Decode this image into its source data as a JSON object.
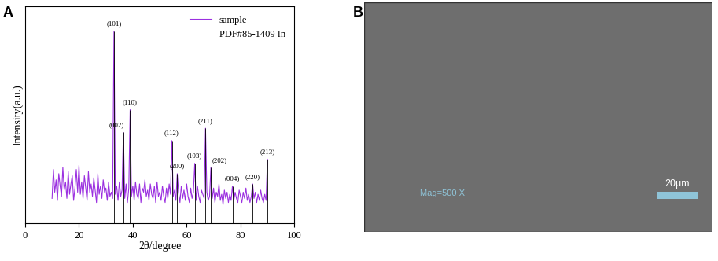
{
  "chart_data": {
    "type": "line",
    "panel_label": "A",
    "x_label": "2θ/degree",
    "y_label": "Intensity(a.u.)",
    "xlim": [
      0,
      100
    ],
    "xticks": [
      0,
      20,
      40,
      60,
      80,
      100
    ],
    "ylim": [
      0,
      1050
    ],
    "yticks": [],
    "tick_labels": "x",
    "grid": false,
    "legend": "upper right",
    "series": [
      {
        "name": "sample",
        "color": "#9b30e0",
        "x": [
          10.0,
          10.5,
          11.0,
          11.5,
          12.0,
          12.5,
          13.0,
          13.5,
          14.0,
          14.5,
          15.0,
          15.5,
          16.0,
          16.5,
          17.0,
          17.5,
          18.0,
          18.5,
          19.0,
          19.5,
          20.0,
          20.5,
          21.0,
          21.5,
          22.0,
          22.5,
          23.0,
          23.5,
          24.0,
          24.5,
          25.0,
          25.5,
          26.0,
          26.5,
          27.0,
          27.5,
          28.0,
          28.5,
          29.0,
          29.5,
          30.0,
          30.5,
          31.0,
          31.5,
          32.0,
          32.5,
          33.0,
          33.5,
          34.0,
          34.5,
          35.0,
          35.5,
          36.0,
          36.5,
          37.0,
          37.5,
          38.0,
          38.5,
          39.0,
          39.5,
          40.0,
          40.5,
          41.0,
          41.5,
          42.0,
          42.5,
          43.0,
          43.5,
          44.0,
          44.5,
          45.0,
          45.5,
          46.0,
          46.5,
          47.0,
          47.5,
          48.0,
          48.5,
          49.0,
          49.5,
          50.0,
          50.5,
          51.0,
          51.5,
          52.0,
          52.5,
          53.0,
          53.5,
          54.0,
          54.5,
          55.0,
          55.5,
          56.0,
          56.5,
          57.0,
          57.5,
          58.0,
          58.5,
          59.0,
          59.5,
          60.0,
          60.5,
          61.0,
          61.5,
          62.0,
          62.5,
          63.0,
          63.5,
          64.0,
          64.5,
          65.0,
          65.5,
          66.0,
          66.5,
          67.0,
          67.5,
          68.0,
          68.5,
          69.0,
          69.5,
          70.0,
          70.5,
          71.0,
          71.5,
          72.0,
          72.5,
          73.0,
          73.5,
          74.0,
          74.5,
          75.0,
          75.5,
          76.0,
          76.5,
          77.0,
          77.5,
          78.0,
          78.5,
          79.0,
          79.5,
          80.0,
          80.5,
          81.0,
          81.5,
          82.0,
          82.5,
          83.0,
          83.5,
          84.0,
          84.5,
          85.0,
          85.5,
          86.0,
          86.5,
          87.0,
          87.5,
          88.0,
          88.5,
          89.0,
          89.5,
          90.0
        ],
        "values": [
          120,
          260,
          150,
          210,
          110,
          240,
          180,
          130,
          270,
          160,
          200,
          120,
          250,
          140,
          190,
          230,
          110,
          170,
          260,
          150,
          280,
          140,
          200,
          120,
          230,
          170,
          110,
          250,
          150,
          190,
          130,
          220,
          160,
          100,
          240,
          140,
          180,
          120,
          210,
          150,
          170,
          110,
          200,
          130,
          150,
          120,
          930,
          140,
          180,
          110,
          200,
          130,
          160,
          440,
          120,
          190,
          100,
          170,
          550,
          130,
          180,
          110,
          200,
          140,
          120,
          190,
          100,
          170,
          150,
          210,
          130,
          160,
          110,
          190,
          140,
          120,
          180,
          100,
          200,
          130,
          150,
          110,
          180,
          130,
          100,
          170,
          120,
          190,
          140,
          400,
          130,
          160,
          110,
          240,
          150,
          100,
          180,
          120,
          160,
          110,
          190,
          130,
          100,
          170,
          120,
          150,
          290,
          110,
          180,
          130,
          100,
          160,
          140,
          120,
          460,
          150,
          110,
          130,
          270,
          120,
          170,
          100,
          150,
          130,
          190,
          110,
          140,
          90,
          160,
          120,
          150,
          100,
          140,
          110,
          180,
          110,
          150,
          120,
          100,
          160,
          130,
          100,
          150,
          120,
          170,
          110,
          140,
          100,
          130,
          190,
          120,
          150,
          100,
          140,
          110,
          160,
          120,
          100,
          140,
          110,
          310
        ]
      },
      {
        "name": "PDF#85-1409 In",
        "color": "#000000",
        "type": "vlines",
        "x": [
          33.0,
          36.5,
          39.0,
          54.5,
          56.5,
          63.0,
          67.0,
          69.0,
          77.0,
          84.5,
          90.0
        ],
        "values": [
          930,
          440,
          550,
          400,
          240,
          290,
          460,
          270,
          180,
          190,
          310
        ],
        "peak_labels": [
          "(101)",
          "(002)",
          "(110)",
          "(112)",
          "(200)",
          "(103)",
          "(211)",
          "(202)",
          "(004)",
          "(220)",
          "(213)"
        ]
      }
    ]
  },
  "panel_b": {
    "type": "image",
    "panel_label": "B",
    "annotation": "Mag=500 X",
    "scale_bar": "20μm"
  }
}
